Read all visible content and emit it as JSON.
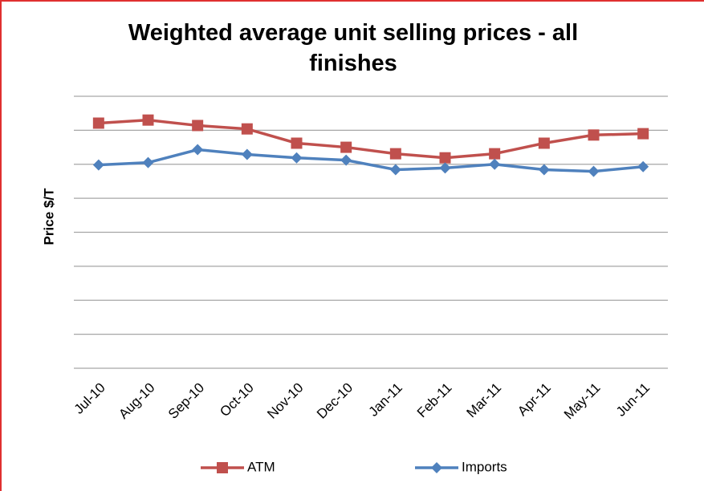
{
  "chart_data": {
    "type": "line",
    "title": "Weighted average unit selling prices - all finishes",
    "y_label": "Price $/T",
    "categories": [
      "Jul-10",
      "Aug-10",
      "Sep-10",
      "Oct-10",
      "Nov-10",
      "Dec-10",
      "Jan-11",
      "Feb-11",
      "Mar-11",
      "Apr-11",
      "May-11",
      "Jun-11"
    ],
    "series": [
      {
        "name": "ATM",
        "color": "#c0504d",
        "marker": "square",
        "values": [
          7.21,
          7.3,
          7.14,
          7.04,
          6.62,
          6.5,
          6.31,
          6.19,
          6.31,
          6.62,
          6.86,
          6.9
        ]
      },
      {
        "name": "Imports",
        "color": "#4f81bd",
        "marker": "diamond",
        "values": [
          5.98,
          6.05,
          6.43,
          6.29,
          6.19,
          6.12,
          5.84,
          5.89,
          6.0,
          5.84,
          5.79,
          5.93
        ]
      }
    ],
    "ylim": [
      0,
      8
    ],
    "yticks": [
      0,
      1,
      2,
      3,
      4,
      5,
      6,
      7,
      8
    ],
    "grid": true,
    "legend": "bottom"
  }
}
